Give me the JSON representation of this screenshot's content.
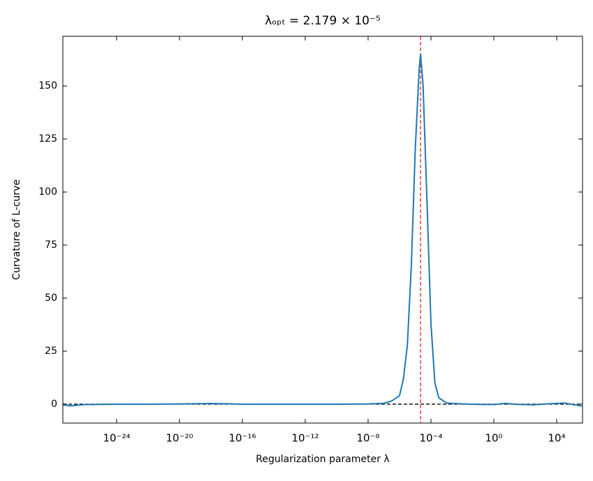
{
  "chart_data": {
    "type": "line",
    "title": "λₒₚₜ = 2.179 × 10⁻⁵",
    "xlabel": "Regularization parameter λ",
    "ylabel": "Curvature of L-curve",
    "xscale": "log",
    "x": [
      3.98e-28,
      1e-27,
      1e-26,
      1e-25,
      1e-24,
      1e-22,
      1e-20,
      1e-18,
      1e-17,
      1e-16,
      1e-14,
      1e-12,
      1e-10,
      1e-08,
      1e-07,
      3.16e-07,
      1e-06,
      1.78e-06,
      3.16e-06,
      5.62e-06,
      1e-05,
      1.78e-05,
      2.179e-05,
      3.16e-05,
      5.62e-05,
      0.0001,
      0.000178,
      0.000316,
      0.001,
      0.01,
      0.1,
      1,
      5.01,
      31.6,
      316,
      3162,
      31623,
      398000
    ],
    "series": [
      {
        "name": "curvature",
        "color": "#1f77b4",
        "values": [
          -0.3,
          -0.8,
          -0.2,
          -0.1,
          0,
          0,
          0.1,
          0.3,
          0.2,
          0,
          0,
          0,
          0,
          0.1,
          0.4,
          1.5,
          4,
          12,
          28,
          65,
          120,
          158,
          165,
          150,
          95,
          38,
          10,
          3,
          0.5,
          0.1,
          -0.1,
          -0.2,
          0.4,
          -0.1,
          -0.3,
          0.2,
          0.5,
          -0.9
        ]
      }
    ],
    "vline": {
      "x": 2.179e-05,
      "color": "#d62728"
    },
    "hline": {
      "y": 0,
      "color": "#000000"
    },
    "xlim": [
      3.8e-28,
      440000.0
    ],
    "ylim": [
      -8.9,
      173.4
    ],
    "xticks": [
      {
        "value": 1e-24,
        "label": "10⁻²⁴"
      },
      {
        "value": 1e-20,
        "label": "10⁻²⁰"
      },
      {
        "value": 1e-16,
        "label": "10⁻¹⁶"
      },
      {
        "value": 1e-12,
        "label": "10⁻¹²"
      },
      {
        "value": 1e-08,
        "label": "10⁻⁸"
      },
      {
        "value": 0.0001,
        "label": "10⁻⁴"
      },
      {
        "value": 1,
        "label": "10⁰"
      },
      {
        "value": 10000,
        "label": "10⁴"
      }
    ],
    "yticks": [
      0,
      25,
      50,
      75,
      100,
      125,
      150
    ],
    "grid": false
  }
}
